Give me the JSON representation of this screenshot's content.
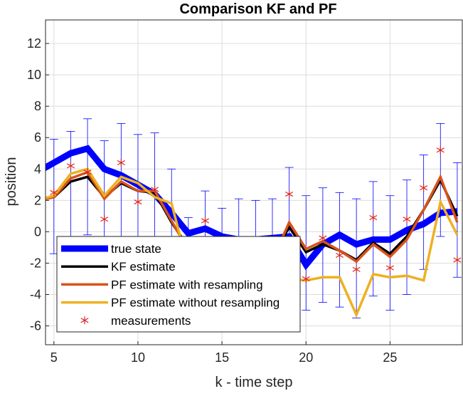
{
  "chart_data": {
    "type": "line",
    "title": "Comparison KF and PF",
    "xlabel": "k - time step",
    "ylabel": "position",
    "xlim": [
      4.5,
      29.3
    ],
    "ylim": [
      -7.2,
      13.5
    ],
    "xticks": [
      5,
      10,
      15,
      20,
      25
    ],
    "yticks": [
      -6,
      -4,
      -2,
      0,
      2,
      4,
      6,
      8,
      10,
      12
    ],
    "grid": true,
    "legend_position": "bottom-left",
    "x": [
      4,
      5,
      6,
      7,
      8,
      9,
      10,
      11,
      12,
      13,
      14,
      15,
      16,
      17,
      18,
      19,
      20,
      21,
      22,
      23,
      24,
      25,
      26,
      27,
      28,
      29
    ],
    "series": [
      {
        "name": "true state",
        "color": "#0000ff",
        "values": [
          3.8,
          4.4,
          5.0,
          5.3,
          4.0,
          3.6,
          3.0,
          2.4,
          1.2,
          -0.1,
          0.2,
          -0.3,
          -0.5,
          -0.5,
          -0.4,
          -0.3,
          -2.1,
          -0.8,
          -0.2,
          -0.8,
          -0.5,
          -0.5,
          0.1,
          0.5,
          1.2,
          1.3
        ]
      },
      {
        "name": "KF estimate",
        "color": "#000000",
        "values": [
          2.0,
          2.2,
          3.2,
          3.5,
          2.2,
          3.1,
          2.6,
          2.5,
          0.6,
          -1.0,
          -1.5,
          -1.6,
          -1.6,
          -1.6,
          -1.6,
          0.3,
          -1.3,
          -0.8,
          -1.2,
          -1.8,
          -0.7,
          -1.4,
          -0.3,
          1.4,
          3.3,
          1.0
        ]
      },
      {
        "name": "PF estimate with resampling",
        "color": "#d95319",
        "values": [
          2.0,
          2.2,
          3.4,
          3.8,
          2.1,
          3.2,
          2.6,
          2.6,
          0.7,
          -1.2,
          -1.6,
          -1.8,
          -1.8,
          -1.8,
          -1.8,
          0.6,
          -1.1,
          -0.6,
          -1.2,
          -1.9,
          -0.8,
          -1.6,
          -0.5,
          1.4,
          3.5,
          0.6
        ]
      },
      {
        "name": "PF estimate without resampling",
        "color": "#edb120",
        "values": [
          2.0,
          2.3,
          3.7,
          4.0,
          2.3,
          3.5,
          3.1,
          2.2,
          1.8,
          -2.3,
          -2.6,
          -2.7,
          -2.7,
          -2.8,
          -2.8,
          -3.0,
          -3.1,
          -2.9,
          -2.9,
          -5.3,
          -2.7,
          -2.9,
          -2.8,
          -3.1,
          1.9,
          -0.2
        ]
      }
    ],
    "measurements": {
      "name": "measurements",
      "color": "#d62728",
      "x": [
        5,
        6,
        7,
        8,
        9,
        10,
        11,
        14,
        19,
        20,
        21,
        22,
        23,
        24,
        25,
        26,
        27,
        28,
        29
      ],
      "y": [
        2.5,
        4.2,
        3.8,
        0.8,
        4.4,
        1.9,
        2.7,
        0.7,
        2.4,
        -3.0,
        -0.4,
        -1.5,
        -2.4,
        0.9,
        -2.3,
        0.8,
        2.8,
        5.2,
        -1.8
      ]
    },
    "error_bars": {
      "color": "#0000ff",
      "x": [
        5,
        6,
        7,
        8,
        9,
        10,
        11,
        12,
        13,
        14,
        15,
        16,
        17,
        18,
        19,
        20,
        21,
        22,
        23,
        24,
        25,
        26,
        27,
        28,
        29
      ],
      "lower": [
        -1.4,
        -1.2,
        -0.2,
        -1.0,
        -1.0,
        -1.5,
        -1.6,
        -1.6,
        -6.3,
        -1.4,
        -2.0,
        -2.0,
        -2.0,
        -2.0,
        -1.5,
        -5.0,
        -4.5,
        -4.8,
        -5.5,
        -4.1,
        -5.0,
        -4.0,
        -2.4,
        -0.3,
        -2.9
      ],
      "upper": [
        5.9,
        6.4,
        7.2,
        5.8,
        6.9,
        6.2,
        6.3,
        4.0,
        0.9,
        2.6,
        1.5,
        2.1,
        2.0,
        2.1,
        4.1,
        2.3,
        2.8,
        2.5,
        2.1,
        3.2,
        2.3,
        3.3,
        4.9,
        6.9,
        4.4
      ]
    }
  }
}
